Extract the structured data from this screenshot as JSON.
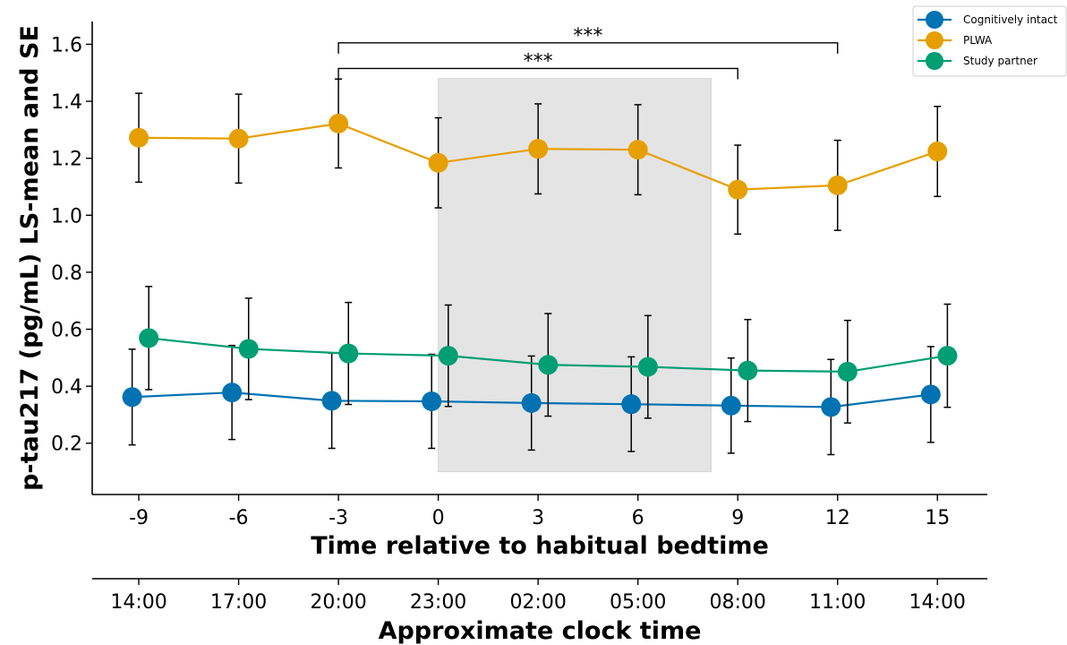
{
  "chart_data": {
    "type": "line",
    "xlabel": "Time relative to habitual bedtime",
    "x2label": "Approximate clock time",
    "ylabel": "p-tau217 (pg/mL) LS-mean and SE",
    "x": [
      -9,
      -6,
      -3,
      0,
      3,
      6,
      9,
      12,
      15
    ],
    "x_ticks": [
      "-9",
      "-6",
      "-3",
      "0",
      "3",
      "6",
      "9",
      "12",
      "15"
    ],
    "clock_ticks": [
      "14:00",
      "17:00",
      "20:00",
      "23:00",
      "02:00",
      "05:00",
      "08:00",
      "11:00",
      "14:00"
    ],
    "y_ticks": [
      "0.2",
      "0.4",
      "0.6",
      "0.8",
      "1.0",
      "1.2",
      "1.4",
      "1.6"
    ],
    "ylim": [
      0.02,
      1.68
    ],
    "xlim": [
      -10.4,
      16.5
    ],
    "shaded_region": {
      "x": [
        0,
        8.2
      ],
      "y": [
        0.1,
        1.48
      ]
    },
    "series": [
      {
        "name": "Cognitively intact",
        "color": "#0072B2",
        "x_offset": -0.2,
        "values": [
          0.362,
          0.378,
          0.349,
          0.347,
          0.341,
          0.337,
          0.332,
          0.327,
          0.371
        ],
        "se": [
          0.168,
          0.165,
          0.167,
          0.165,
          0.165,
          0.166,
          0.167,
          0.167,
          0.168
        ]
      },
      {
        "name": "PLWA",
        "color": "#E69F00",
        "x_offset": 0,
        "values": [
          1.272,
          1.269,
          1.322,
          1.184,
          1.233,
          1.23,
          1.09,
          1.105,
          1.224
        ],
        "se": [
          0.156,
          0.156,
          0.156,
          0.158,
          0.158,
          0.158,
          0.156,
          0.158,
          0.158
        ]
      },
      {
        "name": "Study partner",
        "color": "#009E73",
        "x_offset": 0.3,
        "values": [
          0.569,
          0.531,
          0.515,
          0.507,
          0.475,
          0.468,
          0.455,
          0.451,
          0.507
        ],
        "se": [
          0.181,
          0.178,
          0.179,
          0.178,
          0.18,
          0.18,
          0.179,
          0.18,
          0.181
        ]
      }
    ],
    "significance": [
      {
        "x1": -3,
        "x2": 12,
        "y_bar": 1.605,
        "label": "***"
      },
      {
        "x1": -3,
        "x2": 9,
        "y_bar": 1.515,
        "label": "***"
      }
    ],
    "legend_position": "top-right"
  }
}
